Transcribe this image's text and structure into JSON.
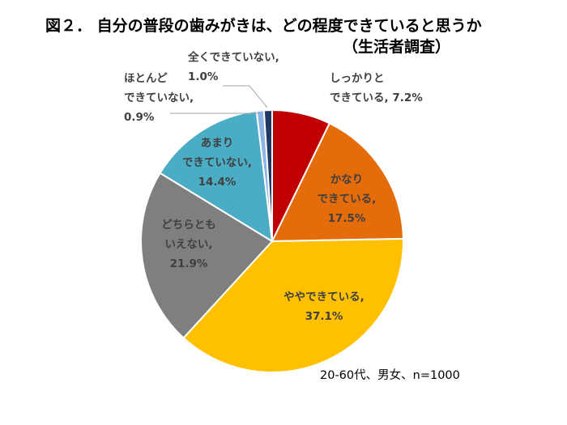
{
  "title": {
    "line1": "図２． 自分の普段の歯みがきは、どの程度できていると思うか",
    "line2": "（生活者調査）"
  },
  "note": "20-60代、男女、n=1000",
  "chart_data": {
    "type": "pie",
    "title": "図２． 自分の普段の歯みがきは、どの程度できていると思うか（生活者調査）",
    "unit": "%",
    "start": "12 o'clock, clockwise",
    "slices": [
      {
        "label": "しっかりと できている",
        "lines": [
          "しっかりと",
          "できている, 7.2%"
        ],
        "value": 7.2,
        "color": "#c00000"
      },
      {
        "label": "かなり できている",
        "lines": [
          "かなり",
          "できている,",
          "17.5%"
        ],
        "value": 17.5,
        "color": "#e46c0a"
      },
      {
        "label": "ややできている",
        "lines": [
          "ややできている,",
          "37.1%"
        ],
        "value": 37.1,
        "color": "#ffc000"
      },
      {
        "label": "どちらとも いえない",
        "lines": [
          "どちらとも",
          "いえない,",
          "21.9%"
        ],
        "value": 21.9,
        "color": "#7f7f7f"
      },
      {
        "label": "あまり できていない",
        "lines": [
          "あまり",
          "できていない,",
          "14.4%"
        ],
        "value": 14.4,
        "color": "#4bacc6"
      },
      {
        "label": "ほとんど できていない",
        "lines": [
          "ほとんど",
          "できていない,",
          "0.9%"
        ],
        "value": 0.9,
        "color": "#8eb4e3"
      },
      {
        "label": "全くできていない",
        "lines": [
          "全くできていない,",
          "1.0%"
        ],
        "value": 1.0,
        "color": "#1f3864"
      }
    ]
  }
}
